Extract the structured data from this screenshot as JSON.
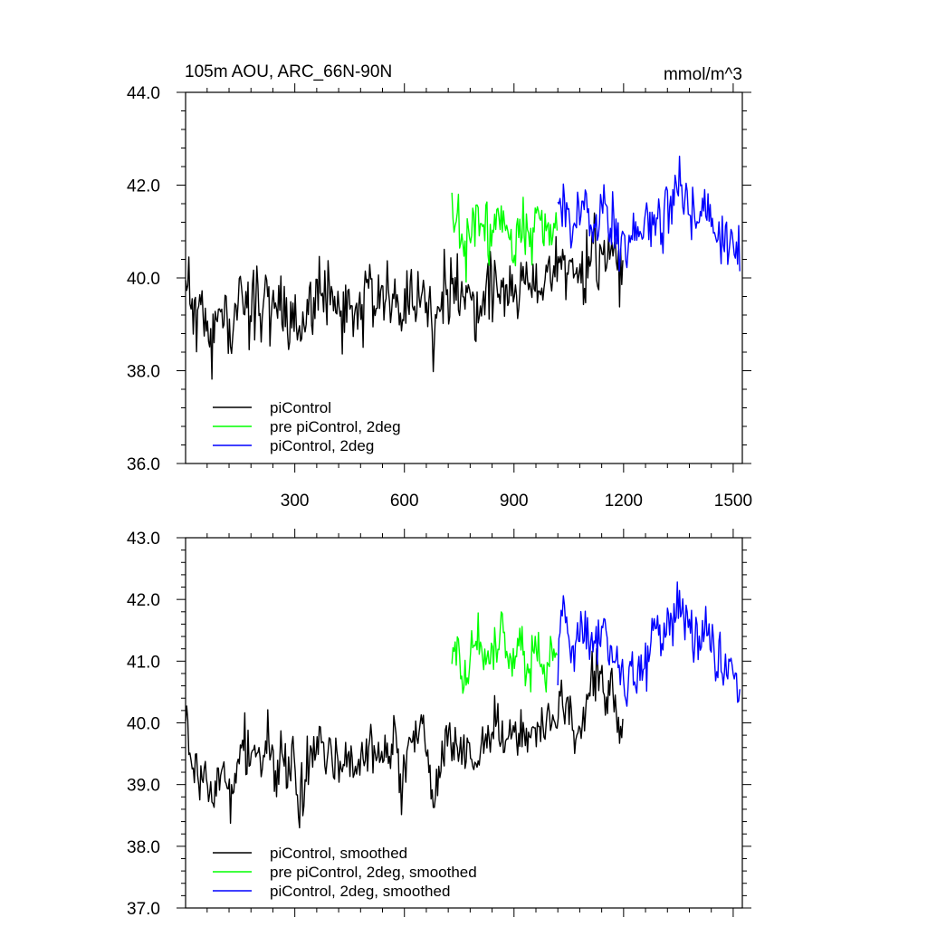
{
  "chart_data": [
    {
      "type": "line",
      "title": "105m AOU, ARC_66N-90N",
      "units": "mmol/m^3",
      "xlim": [
        1,
        1525
      ],
      "ylim": [
        36,
        44
      ],
      "xticks": [
        300,
        600,
        900,
        1200,
        1500
      ],
      "xtick_labels": [
        "300",
        "600",
        "900",
        "1200",
        "1500"
      ],
      "yticks": [
        36,
        38,
        40,
        42,
        44
      ],
      "ytick_labels": [
        "36.0",
        "38.0",
        "40.0",
        "42.0",
        "44.0"
      ],
      "legend_position": "bottom-left",
      "series": [
        {
          "name": "piControl",
          "color": "#000000",
          "x_start": 1,
          "x_end": 1200,
          "base": [
            40.1,
            39.4,
            39.1,
            39.2,
            38.6,
            39.0,
            39.4,
            38.7,
            39.3,
            39.8,
            39.3,
            39.5,
            39.4,
            39.8,
            39.1,
            39.6,
            39.1,
            39.4,
            38.6,
            39.4,
            39.3,
            39.8,
            39.3,
            39.5,
            39.3,
            39.3,
            39.4,
            39.4,
            39.3,
            39.8,
            39.3,
            39.7,
            39.4,
            39.7,
            38.8,
            39.8,
            39.6,
            39.9,
            39.6,
            38.7,
            39.2,
            39.8,
            39.8,
            39.6,
            39.4,
            39.6,
            39.2,
            39.8,
            39.8,
            40.0,
            39.7,
            39.7,
            39.8,
            39.8,
            39.7,
            40.0,
            39.7,
            40.3,
            39.9,
            40.6,
            40.1,
            40.1,
            39.8,
            40.2,
            40.6,
            40.8,
            40.4,
            40.6,
            40.0,
            39.9
          ],
          "amp": 0.65,
          "seed": 11
        },
        {
          "name": "pre piControl, 2deg",
          "color": "#00ff00",
          "x_start": 730,
          "x_end": 1020,
          "base": [
            41.2,
            41.1,
            40.6,
            40.8,
            41.1,
            41.3,
            41.0,
            40.9,
            41.2,
            41.4,
            41.1,
            40.9,
            41.3,
            41.0,
            40.8,
            41.2,
            41.1,
            40.9,
            41.0,
            41.2
          ],
          "amp": 0.55,
          "seed": 23
        },
        {
          "name": "piControl, 2deg",
          "color": "#0000ff",
          "x_start": 1020,
          "x_end": 1520,
          "base": [
            41.1,
            41.3,
            41.2,
            41.0,
            41.5,
            41.6,
            41.4,
            41.2,
            41.3,
            41.6,
            41.2,
            41.0,
            40.8,
            40.7,
            41.0,
            40.9,
            41.1,
            41.0,
            41.3,
            41.5,
            41.2,
            41.8,
            41.6,
            41.9,
            41.7,
            41.5,
            41.3,
            41.2,
            41.6,
            41.4,
            41.0,
            40.9,
            40.8,
            41.0,
            40.6,
            40.7
          ],
          "amp": 0.55,
          "seed": 37
        }
      ]
    },
    {
      "type": "line",
      "title": "",
      "units": "",
      "xlim": [
        1,
        1525
      ],
      "ylim": [
        37,
        43
      ],
      "xticks": [
        300,
        600,
        900,
        1200,
        1500
      ],
      "xtick_labels": [],
      "yticks": [
        37,
        38,
        39,
        40,
        41,
        42,
        43
      ],
      "ytick_labels": [
        "37.0",
        "38.0",
        "39.0",
        "40.0",
        "41.0",
        "42.0",
        "43.0"
      ],
      "legend_position": "bottom-left",
      "series": [
        {
          "name": "piControl, smoothed",
          "color": "#000000",
          "x_start": 1,
          "x_end": 1200,
          "base": [
            40.3,
            39.4,
            39.1,
            39.2,
            38.6,
            39.0,
            39.4,
            38.7,
            39.3,
            39.8,
            39.3,
            39.5,
            39.4,
            39.8,
            39.1,
            39.6,
            39.1,
            39.4,
            38.6,
            39.4,
            39.3,
            39.8,
            39.3,
            39.5,
            39.3,
            39.3,
            39.4,
            39.4,
            39.3,
            39.8,
            39.3,
            39.7,
            39.4,
            39.7,
            38.8,
            39.8,
            39.6,
            39.9,
            39.6,
            38.7,
            39.2,
            39.8,
            39.8,
            39.6,
            39.4,
            39.6,
            39.2,
            39.8,
            39.8,
            40.0,
            39.7,
            39.7,
            39.8,
            39.8,
            39.7,
            40.0,
            39.7,
            40.3,
            39.9,
            40.6,
            40.1,
            40.1,
            39.8,
            40.2,
            40.6,
            40.8,
            40.4,
            40.6,
            40.0,
            39.9
          ],
          "amp": 0.35,
          "seed": 53
        },
        {
          "name": "pre piControl, 2deg, smoothed",
          "color": "#00ff00",
          "x_start": 730,
          "x_end": 1020,
          "base": [
            40.9,
            41.2,
            40.5,
            40.8,
            41.3,
            41.5,
            41.0,
            41.0,
            41.3,
            41.4,
            41.1,
            41.0,
            41.3,
            41.0,
            40.8,
            41.2,
            41.0,
            40.9,
            41.0,
            41.2
          ],
          "amp": 0.35,
          "seed": 61
        },
        {
          "name": "piControl, 2deg, smoothed",
          "color": "#0000ff",
          "x_start": 1020,
          "x_end": 1520,
          "base": [
            41.2,
            42.0,
            41.4,
            41.0,
            41.5,
            41.6,
            41.4,
            41.2,
            41.3,
            41.6,
            41.2,
            41.0,
            40.8,
            40.6,
            41.0,
            40.9,
            41.1,
            41.0,
            41.3,
            41.6,
            41.2,
            41.8,
            41.6,
            42.0,
            41.7,
            41.5,
            41.3,
            41.2,
            41.6,
            41.4,
            41.0,
            40.9,
            40.8,
            41.0,
            40.7,
            40.6
          ],
          "amp": 0.35,
          "seed": 71
        }
      ]
    }
  ]
}
